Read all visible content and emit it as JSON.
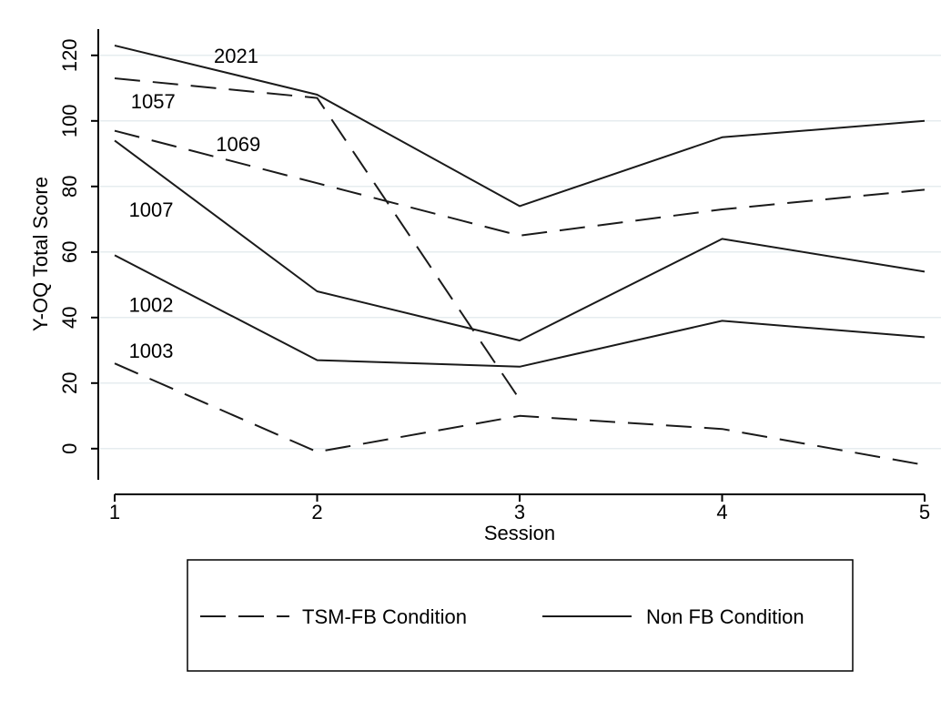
{
  "chart_data": {
    "type": "line",
    "xlabel": "Session",
    "ylabel": "Y-OQ Total Score",
    "x": [
      1,
      2,
      3,
      4,
      5
    ],
    "xticks": [
      "1",
      "2",
      "3",
      "4",
      "5"
    ],
    "yticks": [
      "0",
      "20",
      "40",
      "60",
      "80",
      "100",
      "120"
    ],
    "ylim": [
      -9.5,
      128
    ],
    "grid": true,
    "legend_position": "bottom",
    "legend": [
      {
        "label": "TSM-FB Condition",
        "style": "dashed"
      },
      {
        "label": "Non FB Condition",
        "style": "solid"
      }
    ],
    "series": [
      {
        "id": "1057",
        "style": "dashed",
        "values": [
          113,
          107,
          15,
          null,
          null
        ]
      },
      {
        "id": "1069",
        "style": "dashed",
        "values": [
          97,
          81,
          65,
          73,
          79
        ]
      },
      {
        "id": "1003",
        "style": "dashed",
        "values": [
          26,
          -1,
          10,
          6,
          -5
        ]
      },
      {
        "id": "2021",
        "style": "solid",
        "values": [
          123,
          108,
          74,
          95,
          100
        ]
      },
      {
        "id": "1007",
        "style": "solid",
        "values": [
          94,
          48,
          33,
          64,
          54
        ]
      },
      {
        "id": "1002",
        "style": "solid",
        "values": [
          59,
          27,
          25,
          39,
          34
        ]
      }
    ],
    "labels": [
      {
        "text": "2021",
        "x": 1.6,
        "y": 120
      },
      {
        "text": "1057",
        "x": 1.19,
        "y": 106
      },
      {
        "text": "1069",
        "x": 1.61,
        "y": 93
      },
      {
        "text": "1007",
        "x": 1.18,
        "y": 73
      },
      {
        "text": "1002",
        "x": 1.18,
        "y": 44
      },
      {
        "text": "1003",
        "x": 1.18,
        "y": 30
      }
    ]
  }
}
